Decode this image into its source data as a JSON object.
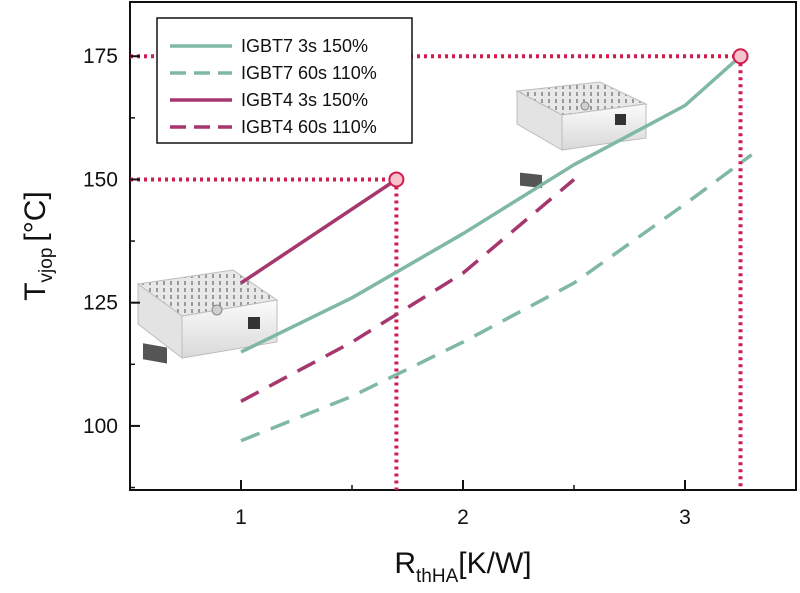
{
  "chart_data": {
    "type": "line",
    "title": "",
    "xlabel": {
      "main": "R",
      "sub": "thHA",
      "unit": "[K/W]"
    },
    "ylabel": {
      "main": "T",
      "sub": "vjop",
      "unit": "[°C]"
    },
    "xlim": [
      0.5,
      3.5
    ],
    "ylim": [
      87,
      186
    ],
    "xticks": [
      1,
      2,
      3
    ],
    "xtick_labels": [
      "1",
      "2",
      "3"
    ],
    "yticks": [
      100,
      125,
      150,
      175
    ],
    "ytick_labels": [
      "100",
      "125",
      "150",
      "175"
    ],
    "grid": false,
    "legend_position": "top-left",
    "series": [
      {
        "name": "IGBT7 3s 150%",
        "color": "#7fb8a4",
        "dash": "solid",
        "x": [
          1.0,
          1.5,
          2.0,
          2.5,
          3.0,
          3.25
        ],
        "y": [
          115,
          126,
          139,
          153,
          165,
          175
        ]
      },
      {
        "name": "IGBT7 60s 110%",
        "color": "#7fb8a4",
        "dash": "dashed",
        "x": [
          1.0,
          1.5,
          2.0,
          2.5,
          3.0,
          3.3
        ],
        "y": [
          97,
          106,
          117,
          129,
          145,
          155
        ]
      },
      {
        "name": "IGBT4 3s 150%",
        "color": "#a6376e",
        "dash": "solid",
        "x": [
          1.0,
          1.7
        ],
        "y": [
          129,
          150
        ]
      },
      {
        "name": "IGBT4 60s 110%",
        "color": "#a6376e",
        "dash": "dashed",
        "x": [
          1.0,
          1.5,
          2.0,
          2.5
        ],
        "y": [
          105,
          117,
          131,
          150
        ]
      }
    ],
    "annotations": [
      {
        "type": "reference-lines",
        "color": "#d21c4e",
        "x": 1.7,
        "y": 150
      },
      {
        "type": "reference-lines",
        "color": "#d21c4e",
        "x": 3.25,
        "y": 175
      }
    ],
    "markers": [
      {
        "x": 1.7,
        "y": 150,
        "fill": "#f6c3cc",
        "stroke": "#d21c4e"
      },
      {
        "x": 3.25,
        "y": 175,
        "fill": "#f6c3cc",
        "stroke": "#d21c4e"
      }
    ]
  }
}
